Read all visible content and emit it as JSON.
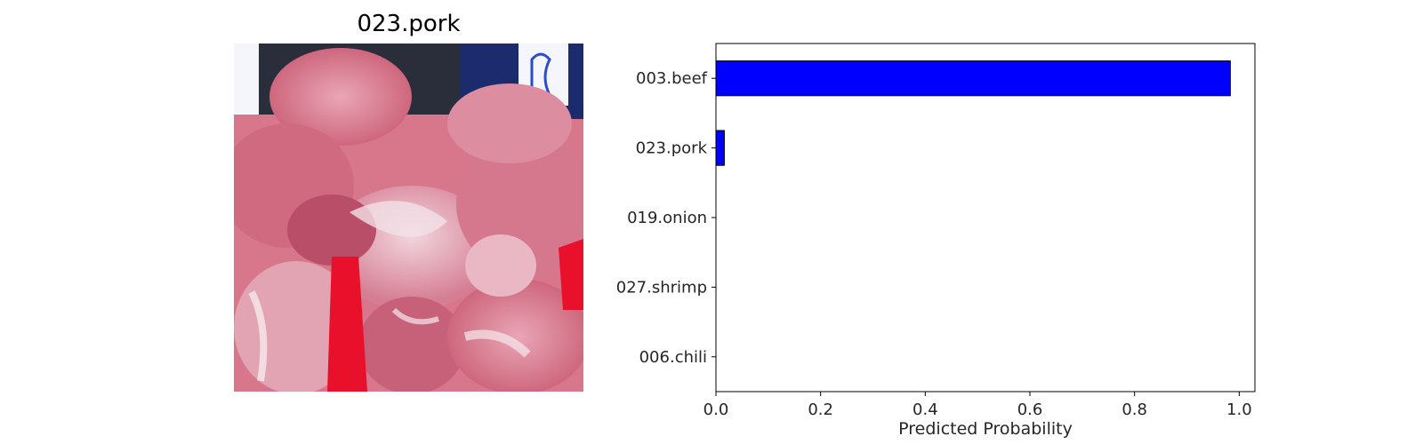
{
  "image_panel": {
    "title": "023.pork"
  },
  "chart_data": {
    "type": "bar",
    "orientation": "horizontal",
    "categories": [
      "003.beef",
      "023.pork",
      "019.onion",
      "027.shrimp",
      "006.chili"
    ],
    "values": [
      0.983,
      0.016,
      0.0005,
      0.0003,
      0.0002
    ],
    "xlabel": "Predicted Probability",
    "ylabel": "",
    "xlim": [
      0.0,
      1.03
    ],
    "xticks": [
      0.0,
      0.2,
      0.4,
      0.6,
      0.8,
      1.0
    ],
    "xtick_labels": [
      "0.0",
      "0.2",
      "0.4",
      "0.6",
      "0.8",
      "1.0"
    ],
    "bar_color": "#0000ff",
    "edge_color": "#000000",
    "grid": false,
    "legend": "none"
  }
}
